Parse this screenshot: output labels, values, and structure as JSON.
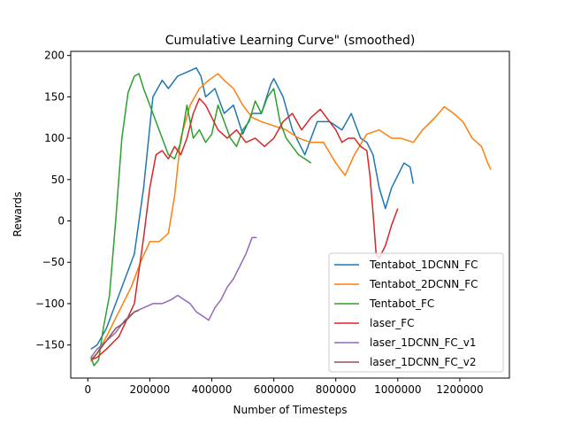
{
  "chart_data": {
    "type": "line",
    "title": "Cumulative Learning Curve\" (smoothed)",
    "xlabel": "Number of Timesteps",
    "ylabel": "Rewards",
    "xlim": [
      -55000,
      1360000
    ],
    "ylim": [
      -190,
      205
    ],
    "xticks": [
      0,
      200000,
      400000,
      600000,
      800000,
      1000000,
      1200000
    ],
    "xtick_labels": [
      "0",
      "200000",
      "400000",
      "600000",
      "800000",
      "1000000",
      "1200000"
    ],
    "yticks": [
      -150,
      -100,
      -50,
      0,
      50,
      100,
      150,
      200
    ],
    "ytick_labels": [
      "−150",
      "−100",
      "−50",
      "0",
      "50",
      "100",
      "150",
      "200"
    ],
    "grid": false,
    "legend_position": "lower-right",
    "series": [
      {
        "name": "Tentabot_1DCNN_FC",
        "color": "#1f77b4",
        "x": [
          10000,
          30000,
          60000,
          100000,
          150000,
          180000,
          210000,
          240000,
          260000,
          290000,
          320000,
          350000,
          365000,
          380000,
          410000,
          440000,
          470000,
          500000,
          530000,
          560000,
          590000,
          600000,
          630000,
          660000,
          700000,
          740000,
          780000,
          820000,
          850000,
          880000,
          900000,
          920000,
          940000,
          960000,
          980000,
          1000000,
          1020000,
          1040000,
          1050000
        ],
        "y": [
          -155,
          -150,
          -130,
          -90,
          -40,
          40,
          150,
          170,
          160,
          175,
          180,
          185,
          175,
          150,
          160,
          130,
          140,
          105,
          130,
          130,
          165,
          172,
          150,
          110,
          80,
          120,
          120,
          110,
          130,
          100,
          95,
          80,
          40,
          15,
          40,
          55,
          70,
          65,
          45
        ]
      },
      {
        "name": "Tentabot_2DCNN_FC",
        "color": "#ff7f0e",
        "x": [
          10000,
          30000,
          60000,
          100000,
          140000,
          170000,
          200000,
          230000,
          260000,
          280000,
          300000,
          330000,
          360000,
          390000,
          420000,
          440000,
          470000,
          500000,
          530000,
          560000,
          600000,
          640000,
          680000,
          720000,
          760000,
          800000,
          830000,
          860000,
          900000,
          940000,
          980000,
          1010000,
          1050000,
          1080000,
          1120000,
          1150000,
          1180000,
          1210000,
          1240000,
          1270000,
          1290000,
          1300000
        ],
        "y": [
          -170,
          -160,
          -140,
          -110,
          -80,
          -50,
          -25,
          -25,
          -15,
          30,
          100,
          140,
          160,
          170,
          178,
          170,
          160,
          140,
          125,
          120,
          115,
          110,
          100,
          95,
          95,
          70,
          55,
          80,
          105,
          110,
          100,
          100,
          95,
          110,
          125,
          138,
          130,
          120,
          100,
          90,
          70,
          62
        ]
      },
      {
        "name": "Tentabot_FC",
        "color": "#2ca02c",
        "x": [
          10000,
          20000,
          35000,
          50000,
          70000,
          90000,
          110000,
          130000,
          150000,
          165000,
          180000,
          200000,
          220000,
          240000,
          260000,
          280000,
          300000,
          320000,
          340000,
          360000,
          380000,
          400000,
          420000,
          440000,
          460000,
          480000,
          500000,
          520000,
          540000,
          560000,
          580000,
          600000,
          620000,
          640000,
          660000,
          680000,
          700000,
          720000
        ],
        "y": [
          -165,
          -175,
          -168,
          -130,
          -90,
          0,
          100,
          155,
          175,
          178,
          160,
          140,
          120,
          100,
          80,
          75,
          95,
          140,
          100,
          110,
          95,
          105,
          140,
          120,
          100,
          90,
          110,
          120,
          145,
          130,
          150,
          160,
          120,
          100,
          90,
          80,
          75,
          70
        ]
      },
      {
        "name": "laser_FC",
        "color": "#d62728",
        "x": [
          10000,
          30000,
          60000,
          100000,
          150000,
          180000,
          200000,
          220000,
          240000,
          260000,
          280000,
          300000,
          320000,
          340000,
          360000,
          380000,
          400000,
          420000,
          450000,
          480000,
          510000,
          540000,
          570000,
          600000,
          630000,
          660000,
          690000,
          720000,
          750000,
          780000,
          800000,
          820000,
          840000,
          860000,
          880000,
          900000,
          910000,
          920000,
          930000,
          940000,
          960000,
          980000,
          1000000
        ],
        "y": [
          -168,
          -165,
          -155,
          -140,
          -100,
          -20,
          40,
          80,
          85,
          75,
          90,
          80,
          100,
          130,
          148,
          140,
          125,
          110,
          100,
          110,
          95,
          100,
          90,
          100,
          120,
          130,
          110,
          125,
          135,
          120,
          110,
          95,
          100,
          100,
          90,
          85,
          55,
          10,
          -40,
          -45,
          -30,
          -5,
          15
        ]
      },
      {
        "name": "laser_1DCNN_FC_v1",
        "color": "#9467bd",
        "x": [
          10000,
          30000,
          60000,
          90000,
          120000,
          150000,
          180000,
          210000,
          240000,
          270000,
          290000,
          310000,
          330000,
          350000,
          370000,
          390000,
          410000,
          430000,
          450000,
          470000,
          490000,
          510000,
          530000,
          545000
        ],
        "y": [
          -165,
          -155,
          -145,
          -135,
          -120,
          -110,
          -105,
          -100,
          -100,
          -95,
          -90,
          -95,
          -100,
          -110,
          -115,
          -120,
          -105,
          -95,
          -80,
          -70,
          -55,
          -40,
          -20,
          -20
        ]
      },
      {
        "name": "laser_1DCNN_FC_v2",
        "color": "#8c564b",
        "x": [
          10000,
          30000,
          50000,
          70000,
          90000,
          110000,
          130000,
          150000,
          165000
        ],
        "y": [
          -168,
          -160,
          -150,
          -140,
          -130,
          -125,
          -118,
          -110,
          -108
        ]
      }
    ]
  }
}
